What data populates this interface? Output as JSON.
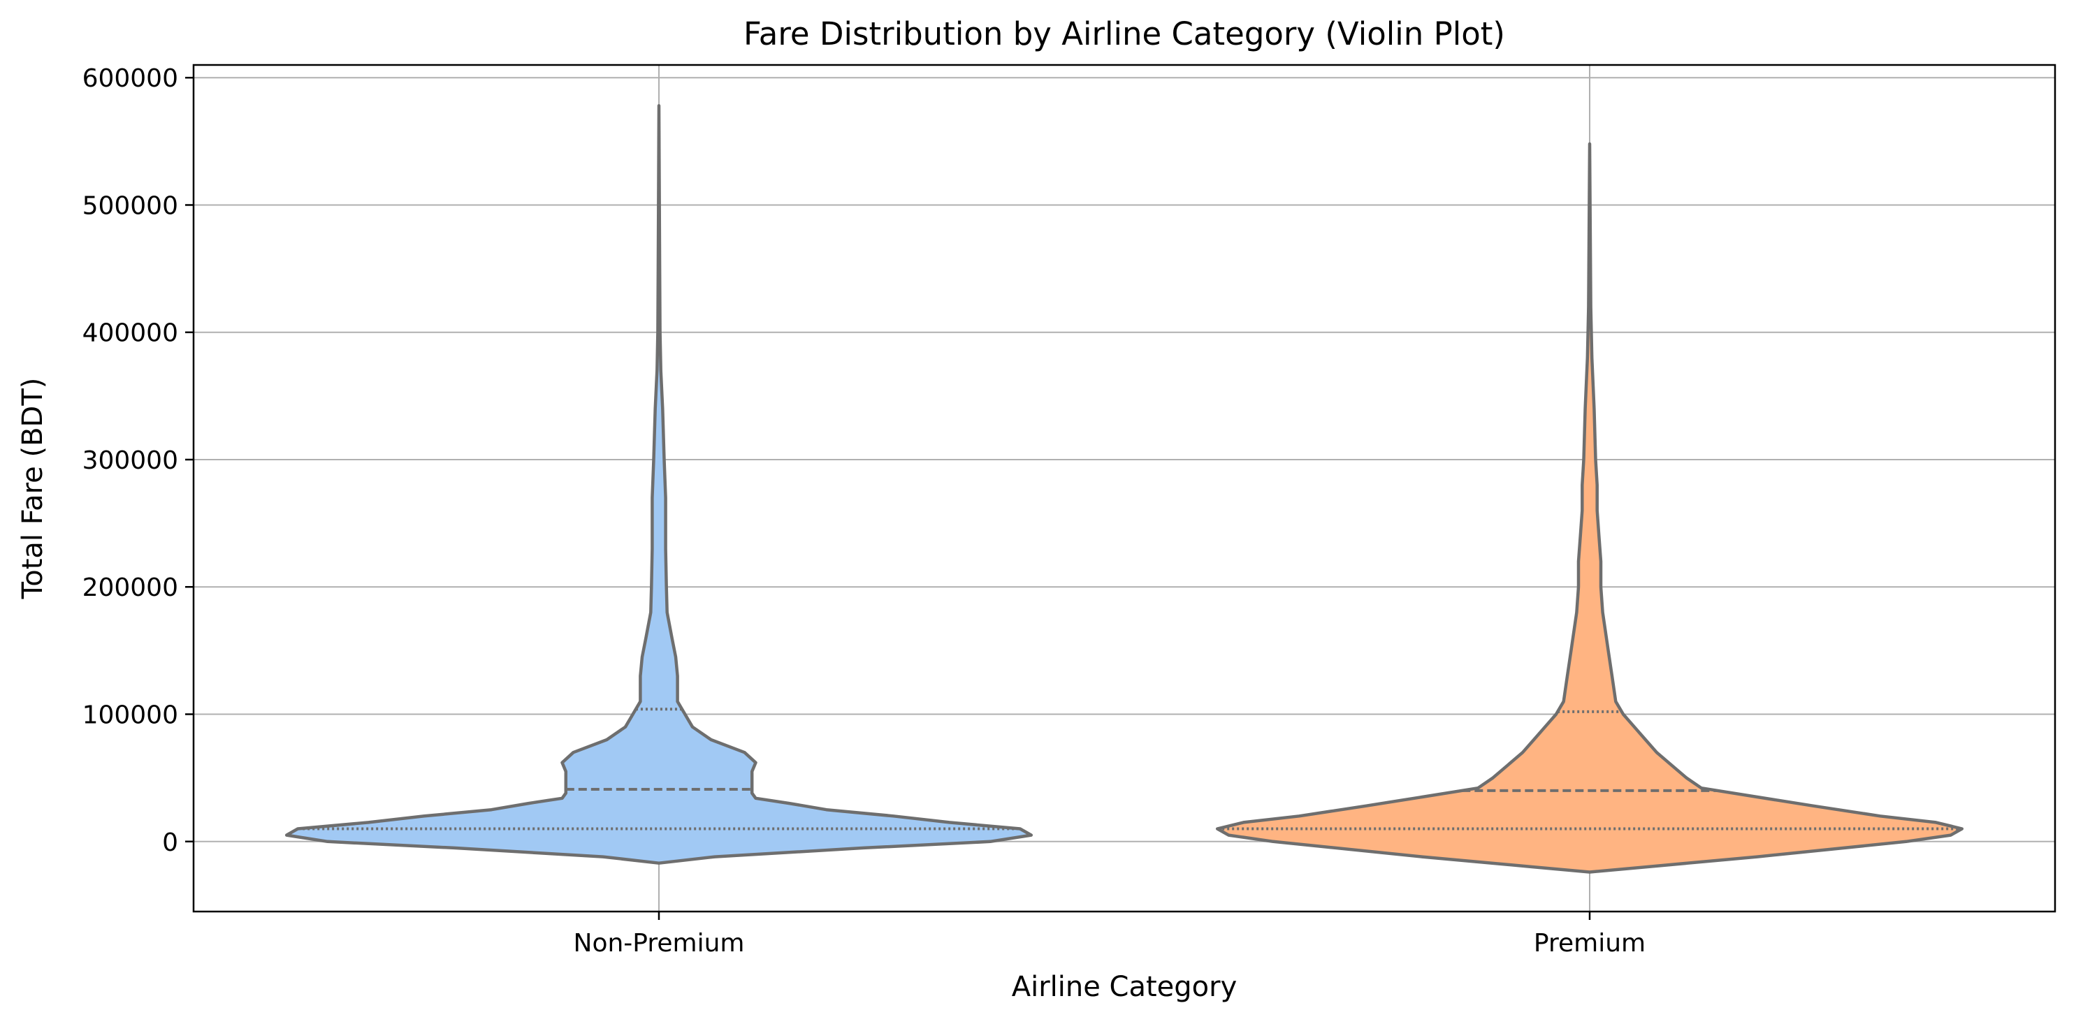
{
  "chart_data": {
    "type": "violin",
    "title": "Fare Distribution by Airline Category (Violin Plot)",
    "xlabel": "Airline Category",
    "ylabel": "Total Fare (BDT)",
    "categories": [
      "Non-Premium",
      "Premium"
    ],
    "ylim": [
      -55000,
      610000
    ],
    "yticks": [
      0,
      100000,
      200000,
      300000,
      400000,
      500000,
      600000
    ],
    "ytick_labels": [
      "0",
      "100000",
      "200000",
      "300000",
      "400000",
      "500000",
      "600000"
    ],
    "grid": true,
    "colors": [
      "#a1c9f4",
      "#ffb482"
    ],
    "edge_color": "#6e6e6e",
    "series": [
      {
        "category": "Non-Premium",
        "quartiles": {
          "q1": 10000,
          "median": 41000,
          "q3": 104000
        },
        "max": 578000,
        "profile": [
          [
            -17000,
            0.0
          ],
          [
            -12000,
            0.15
          ],
          [
            -5000,
            0.55
          ],
          [
            0,
            0.89
          ],
          [
            5000,
            1.0
          ],
          [
            10000,
            0.97
          ],
          [
            15000,
            0.78
          ],
          [
            20000,
            0.63
          ],
          [
            25000,
            0.45
          ],
          [
            30000,
            0.35
          ],
          [
            34000,
            0.26
          ],
          [
            38000,
            0.25
          ],
          [
            45000,
            0.25
          ],
          [
            55000,
            0.25
          ],
          [
            62000,
            0.26
          ],
          [
            70000,
            0.23
          ],
          [
            80000,
            0.14
          ],
          [
            90000,
            0.09
          ],
          [
            100000,
            0.07
          ],
          [
            110000,
            0.05
          ],
          [
            130000,
            0.05
          ],
          [
            145000,
            0.045
          ],
          [
            160000,
            0.035
          ],
          [
            180000,
            0.022
          ],
          [
            200000,
            0.02
          ],
          [
            230000,
            0.018
          ],
          [
            270000,
            0.018
          ],
          [
            300000,
            0.014
          ],
          [
            340000,
            0.01
          ],
          [
            370000,
            0.005
          ],
          [
            400000,
            0.003
          ],
          [
            450000,
            0.002
          ],
          [
            578000,
            0.0
          ]
        ]
      },
      {
        "category": "Premium",
        "quartiles": {
          "q1": 10000,
          "median": 40000,
          "q3": 102000
        },
        "max": 548000,
        "profile": [
          [
            -24000,
            0.0
          ],
          [
            -20000,
            0.15
          ],
          [
            -12000,
            0.45
          ],
          [
            0,
            0.85
          ],
          [
            5000,
            0.97
          ],
          [
            10000,
            1.0
          ],
          [
            15000,
            0.93
          ],
          [
            20000,
            0.78
          ],
          [
            28000,
            0.6
          ],
          [
            35000,
            0.45
          ],
          [
            42000,
            0.3
          ],
          [
            50000,
            0.26
          ],
          [
            60000,
            0.22
          ],
          [
            70000,
            0.18
          ],
          [
            80000,
            0.15
          ],
          [
            90000,
            0.12
          ],
          [
            100000,
            0.09
          ],
          [
            110000,
            0.07
          ],
          [
            130000,
            0.06
          ],
          [
            150000,
            0.05
          ],
          [
            180000,
            0.035
          ],
          [
            200000,
            0.03
          ],
          [
            220000,
            0.03
          ],
          [
            240000,
            0.025
          ],
          [
            260000,
            0.02
          ],
          [
            280000,
            0.02
          ],
          [
            300000,
            0.016
          ],
          [
            340000,
            0.012
          ],
          [
            380000,
            0.006
          ],
          [
            420000,
            0.003
          ],
          [
            548000,
            0.0
          ]
        ]
      }
    ]
  }
}
